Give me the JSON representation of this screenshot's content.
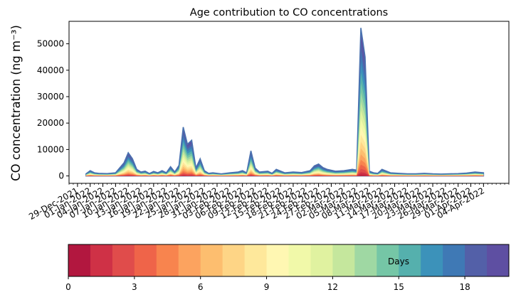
{
  "chart_data": {
    "type": "area",
    "title": "Age contribution to CO concentrations",
    "ylabel": "CO concentration (ng m⁻³)",
    "xlabel": "",
    "x_range": [
      "2021-12-27",
      "2022-04-10"
    ],
    "ylim": [
      -2800,
      58500
    ],
    "y_ticks": [
      0,
      10000,
      20000,
      30000,
      40000,
      50000
    ],
    "x_tick_labels": [
      "29-Dec-2021",
      "01-Jan-2022",
      "04-Jan-2022",
      "07-Jan-2022",
      "10-Jan-2022",
      "13-Jan-2022",
      "16-Jan-2022",
      "19-Jan-2022",
      "22-Jan-2022",
      "25-Jan-2022",
      "28-Jan-2022",
      "31-Jan-2022",
      "03-Feb-2022",
      "06-Feb-2022",
      "09-Feb-2022",
      "12-Feb-2022",
      "15-Feb-2022",
      "18-Feb-2022",
      "21-Feb-2022",
      "24-Feb-2022",
      "27-Feb-2022",
      "02-Mar-2022",
      "05-Mar-2022",
      "08-Mar-2022",
      "11-Mar-2022",
      "14-Mar-2022",
      "17-Mar-2022",
      "20-Mar-2022",
      "23-Mar-2022",
      "26-Mar-2022",
      "29-Mar-2022",
      "01-Apr-2022",
      "04-Apr-2022"
    ],
    "series_top_total": {
      "dates": [
        "2021-12-31",
        "2022-01-01",
        "2022-01-02",
        "2022-01-03",
        "2022-01-05",
        "2022-01-07",
        "2022-01-09",
        "2022-01-10",
        "2022-01-11",
        "2022-01-12",
        "2022-01-13",
        "2022-01-14",
        "2022-01-15",
        "2022-01-16",
        "2022-01-17",
        "2022-01-18",
        "2022-01-19",
        "2022-01-20",
        "2022-01-21",
        "2022-01-22",
        "2022-01-23",
        "2022-01-24",
        "2022-01-25",
        "2022-01-26",
        "2022-01-27",
        "2022-01-28",
        "2022-01-29",
        "2022-01-30",
        "2022-02-01",
        "2022-02-03",
        "2022-02-05",
        "2022-02-06",
        "2022-02-07",
        "2022-02-08",
        "2022-02-09",
        "2022-02-10",
        "2022-02-12",
        "2022-02-13",
        "2022-02-14",
        "2022-02-16",
        "2022-02-18",
        "2022-02-20",
        "2022-02-22",
        "2022-02-23",
        "2022-02-24",
        "2022-02-25",
        "2022-02-26",
        "2022-02-28",
        "2022-03-02",
        "2022-03-04",
        "2022-03-05",
        "2022-03-06",
        "2022-03-07",
        "2022-03-08",
        "2022-03-09",
        "2022-03-10",
        "2022-03-11",
        "2022-03-13",
        "2022-03-15",
        "2022-03-17",
        "2022-03-19",
        "2022-03-21",
        "2022-03-23",
        "2022-03-25",
        "2022-03-27",
        "2022-03-29",
        "2022-03-31",
        "2022-04-02",
        "2022-04-04"
      ],
      "values": [
        800,
        2000,
        1200,
        1000,
        900,
        1200,
        5000,
        8800,
        6500,
        2500,
        1500,
        1800,
        900,
        1700,
        1200,
        2000,
        1200,
        3500,
        1500,
        4000,
        18500,
        12000,
        13500,
        3000,
        6500,
        2000,
        1000,
        1200,
        800,
        1200,
        1500,
        2000,
        1200,
        9500,
        3000,
        1500,
        1800,
        1000,
        2500,
        1200,
        1500,
        1300,
        2000,
        3800,
        4500,
        3200,
        2500,
        1800,
        2000,
        2500,
        2200,
        56000,
        45000,
        1800,
        1200,
        1000,
        2500,
        1200,
        1000,
        800,
        800,
        1000,
        800,
        700,
        800,
        900,
        1100,
        1500,
        1200
      ]
    },
    "colorbar": {
      "label": "Days",
      "min": 0,
      "max": 20,
      "ticks": [
        0,
        3,
        6,
        9,
        12,
        15,
        18
      ],
      "colors": [
        "#b2173f",
        "#cf3146",
        "#e04c4b",
        "#ef6449",
        "#f8844e",
        "#fca35f",
        "#fdbe6f",
        "#fed586",
        "#fee89b",
        "#fff7b2",
        "#f1f9a9",
        "#e0f2a0",
        "#c5e79d",
        "#9fd8a3",
        "#75c6a6",
        "#55b0ad",
        "#3c92ba",
        "#3f79b5",
        "#5360a8",
        "#5e4fa2"
      ]
    }
  }
}
